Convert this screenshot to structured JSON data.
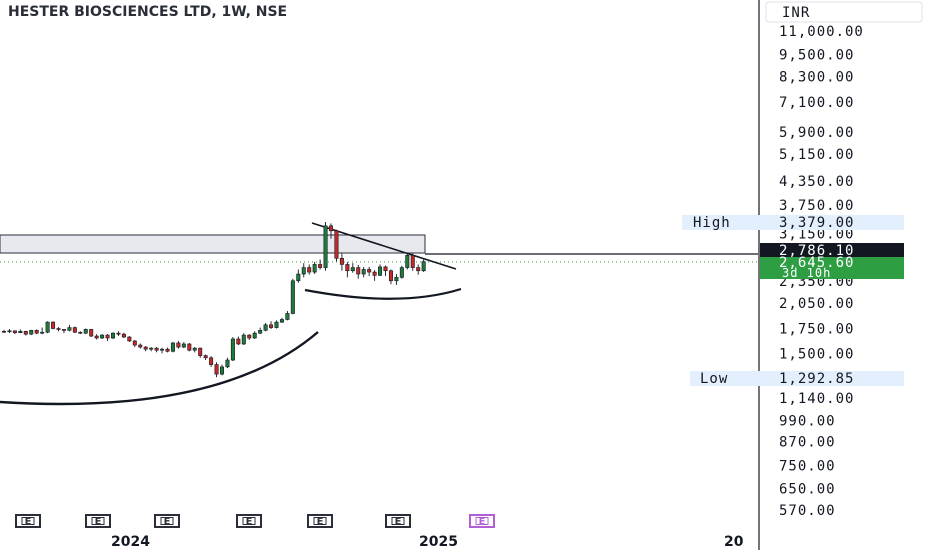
{
  "header": {
    "title": "HESTER BIOSCIENCES LTD, 1W, NSE"
  },
  "currency_label": "INR",
  "colors": {
    "up": "#26a69a",
    "up_fill": "#1f7a3a",
    "down": "#c62828",
    "grid_line": "#131722",
    "high_low_bg": "#e3effd",
    "current_price_bg": "#131722",
    "last_price_bg": "#2e9e43",
    "earnings_marker": "#2a2e39",
    "earnings_upcoming": "#b25fd6"
  },
  "chart_data": {
    "type": "candlestick",
    "title": "HESTER BIOSCIENCES LTD, 1W, NSE",
    "y_scale": "log",
    "y_ticks": [
      "11,000.00",
      "9,500.00",
      "8,300.00",
      "7,100.00",
      "5,900.00",
      "5,150.00",
      "4,350.00",
      "3,750.00",
      "3,150.00",
      "2,350.00",
      "2,050.00",
      "1,750.00",
      "1,500.00",
      "1,140.00",
      "990.00",
      "870.00",
      "750.00",
      "650.00",
      "570.00"
    ],
    "y_tick_values": [
      11000,
      9500,
      8300,
      7100,
      5900,
      5150,
      4350,
      3750,
      3150,
      2350,
      2050,
      1750,
      1500,
      1140,
      990,
      870,
      750,
      650,
      570
    ],
    "x_labels": [
      "2024",
      "2025",
      "20"
    ],
    "high": {
      "label": "High",
      "value": "3,379.00"
    },
    "low": {
      "label": "Low",
      "value": "1,292.85"
    },
    "current_price": {
      "value": "2,786.10"
    },
    "last_price": {
      "value": "2,645.60",
      "countdown": "3d 10h"
    },
    "earnings_marker_label": "E",
    "earnings_marker_count": 7,
    "candles": [
      [
        1720,
        1710,
        1735,
        1705
      ],
      [
        1715,
        1725,
        1745,
        1700
      ],
      [
        1725,
        1705,
        1730,
        1690
      ],
      [
        1705,
        1720,
        1740,
        1700
      ],
      [
        1720,
        1690,
        1725,
        1675
      ],
      [
        1690,
        1730,
        1735,
        1680
      ],
      [
        1730,
        1700,
        1740,
        1690
      ],
      [
        1700,
        1710,
        1760,
        1690
      ],
      [
        1710,
        1820,
        1830,
        1700
      ],
      [
        1820,
        1750,
        1830,
        1740
      ],
      [
        1750,
        1740,
        1765,
        1720
      ],
      [
        1740,
        1730,
        1745,
        1700
      ],
      [
        1730,
        1760,
        1790,
        1720
      ],
      [
        1760,
        1710,
        1770,
        1700
      ],
      [
        1710,
        1700,
        1720,
        1690
      ],
      [
        1700,
        1740,
        1750,
        1690
      ],
      [
        1740,
        1670,
        1745,
        1660
      ],
      [
        1670,
        1650,
        1690,
        1635
      ],
      [
        1650,
        1680,
        1690,
        1640
      ],
      [
        1680,
        1650,
        1690,
        1620
      ],
      [
        1650,
        1700,
        1710,
        1640
      ],
      [
        1700,
        1690,
        1720,
        1670
      ],
      [
        1690,
        1660,
        1705,
        1650
      ],
      [
        1660,
        1620,
        1670,
        1610
      ],
      [
        1620,
        1580,
        1630,
        1560
      ],
      [
        1580,
        1560,
        1595,
        1545
      ],
      [
        1560,
        1540,
        1570,
        1520
      ],
      [
        1540,
        1550,
        1560,
        1520
      ],
      [
        1550,
        1530,
        1560,
        1510
      ],
      [
        1530,
        1540,
        1555,
        1500
      ],
      [
        1540,
        1520,
        1555,
        1510
      ],
      [
        1520,
        1600,
        1610,
        1510
      ],
      [
        1600,
        1560,
        1620,
        1545
      ],
      [
        1560,
        1590,
        1610,
        1550
      ],
      [
        1590,
        1530,
        1600,
        1520
      ],
      [
        1530,
        1550,
        1560,
        1510
      ],
      [
        1550,
        1480,
        1555,
        1460
      ],
      [
        1480,
        1460,
        1490,
        1440
      ],
      [
        1460,
        1400,
        1475,
        1380
      ],
      [
        1400,
        1320,
        1420,
        1295
      ],
      [
        1320,
        1380,
        1400,
        1310
      ],
      [
        1380,
        1440,
        1460,
        1370
      ],
      [
        1440,
        1640,
        1660,
        1430
      ],
      [
        1640,
        1590,
        1665,
        1580
      ],
      [
        1590,
        1680,
        1700,
        1580
      ],
      [
        1680,
        1650,
        1690,
        1630
      ],
      [
        1650,
        1700,
        1720,
        1640
      ],
      [
        1700,
        1730,
        1760,
        1690
      ],
      [
        1730,
        1790,
        1810,
        1720
      ],
      [
        1790,
        1760,
        1830,
        1745
      ],
      [
        1760,
        1820,
        1840,
        1750
      ],
      [
        1820,
        1850,
        1870,
        1810
      ],
      [
        1850,
        1920,
        1950,
        1840
      ],
      [
        1920,
        2350,
        2380,
        1910
      ],
      [
        2350,
        2450,
        2520,
        2320
      ],
      [
        2450,
        2550,
        2620,
        2400
      ],
      [
        2550,
        2480,
        2600,
        2440
      ],
      [
        2480,
        2600,
        2640,
        2450
      ],
      [
        2600,
        2550,
        2680,
        2520
      ],
      [
        2550,
        3300,
        3379,
        2500
      ],
      [
        3300,
        3200,
        3350,
        3050
      ],
      [
        3200,
        2700,
        3220,
        2650
      ],
      [
        2700,
        2600,
        2780,
        2500
      ],
      [
        2600,
        2500,
        2640,
        2400
      ],
      [
        2500,
        2550,
        2620,
        2470
      ],
      [
        2550,
        2450,
        2590,
        2380
      ],
      [
        2450,
        2520,
        2560,
        2400
      ],
      [
        2520,
        2480,
        2560,
        2420
      ],
      [
        2480,
        2430,
        2510,
        2350
      ],
      [
        2430,
        2560,
        2600,
        2420
      ],
      [
        2560,
        2500,
        2580,
        2420
      ],
      [
        2500,
        2350,
        2520,
        2300
      ],
      [
        2350,
        2400,
        2450,
        2290
      ],
      [
        2400,
        2550,
        2580,
        2380
      ],
      [
        2550,
        2750,
        2800,
        2520
      ],
      [
        2750,
        2550,
        2780,
        2500
      ],
      [
        2550,
        2500,
        2600,
        2440
      ],
      [
        2500,
        2645.6,
        2680,
        2480
      ]
    ]
  }
}
